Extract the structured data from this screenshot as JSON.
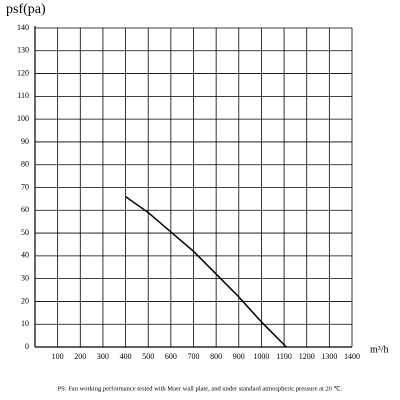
{
  "chart_data": {
    "type": "line",
    "ylabel": "psf(pa)",
    "xlabel": "m³/h",
    "note": "PS: Fan working performance tested with Maer wall plate, and under standard atmospheric pressure at 20 ℃.",
    "xlim": [
      0,
      1400
    ],
    "xticks": [
      100,
      200,
      300,
      400,
      500,
      600,
      700,
      800,
      900,
      1000,
      1100,
      1200,
      1300,
      1400
    ],
    "ylim": [
      0,
      140
    ],
    "yticks": [
      0,
      10,
      20,
      30,
      40,
      50,
      60,
      70,
      80,
      90,
      100,
      110,
      120,
      130,
      140
    ],
    "grid": true,
    "series": [
      {
        "color": "#000000",
        "x": [
          400,
          500,
          600,
          700,
          800,
          900,
          1000,
          1100,
          1110
        ],
        "values": [
          66,
          59,
          50.5,
          42,
          32,
          22,
          11,
          1,
          0
        ]
      }
    ]
  }
}
